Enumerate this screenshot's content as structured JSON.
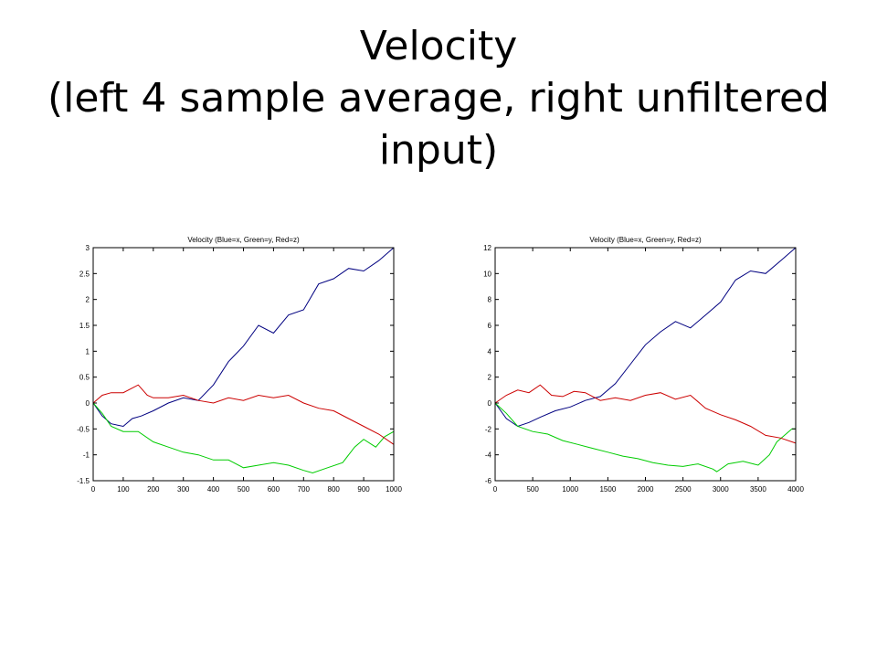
{
  "slide": {
    "title_line1": "Velocity",
    "title_line2": "(left 4 sample average, right unfiltered",
    "title_line3": "input)"
  },
  "chart_data": [
    {
      "type": "line",
      "title": "Velocity (Blue=x, Green=y, Red=z)",
      "xlabel": "",
      "ylabel": "",
      "xlim": [
        0,
        1000
      ],
      "ylim": [
        -1.5,
        3
      ],
      "xticks": [
        0,
        100,
        200,
        300,
        400,
        500,
        600,
        700,
        800,
        900,
        1000
      ],
      "yticks": [
        -1.5,
        -1,
        -0.5,
        0,
        0.5,
        1,
        1.5,
        2,
        2.5,
        3
      ],
      "grid": false,
      "series": [
        {
          "color": "#000080",
          "x": [
            0,
            30,
            60,
            100,
            130,
            160,
            200,
            250,
            300,
            350,
            400,
            450,
            500,
            550,
            600,
            650,
            700,
            750,
            800,
            850,
            900,
            950,
            1000
          ],
          "y": [
            0,
            -0.25,
            -0.4,
            -0.45,
            -0.3,
            -0.25,
            -0.15,
            0.0,
            0.1,
            0.05,
            0.35,
            0.8,
            1.1,
            1.5,
            1.35,
            1.7,
            1.8,
            2.3,
            2.4,
            2.6,
            2.55,
            2.75,
            3.0
          ]
        },
        {
          "color": "#00cc00",
          "x": [
            0,
            30,
            60,
            100,
            150,
            200,
            250,
            300,
            350,
            400,
            450,
            500,
            550,
            600,
            650,
            700,
            730,
            780,
            830,
            870,
            900,
            940,
            970,
            1000
          ],
          "y": [
            0,
            -0.2,
            -0.45,
            -0.55,
            -0.55,
            -0.75,
            -0.85,
            -0.95,
            -1.0,
            -1.1,
            -1.1,
            -1.25,
            -1.2,
            -1.15,
            -1.2,
            -1.3,
            -1.35,
            -1.25,
            -1.15,
            -0.85,
            -0.7,
            -0.85,
            -0.65,
            -0.55
          ]
        },
        {
          "color": "#cc0000",
          "x": [
            0,
            30,
            60,
            100,
            150,
            180,
            200,
            250,
            300,
            350,
            400,
            450,
            500,
            550,
            600,
            650,
            700,
            750,
            800,
            850,
            900,
            950,
            1000
          ],
          "y": [
            0,
            0.15,
            0.2,
            0.2,
            0.35,
            0.15,
            0.1,
            0.1,
            0.15,
            0.05,
            0.0,
            0.1,
            0.05,
            0.15,
            0.1,
            0.15,
            0.0,
            -0.1,
            -0.15,
            -0.3,
            -0.45,
            -0.6,
            -0.8
          ]
        }
      ]
    },
    {
      "type": "line",
      "title": "Velocity (Blue=x, Green=y, Red=z)",
      "xlabel": "",
      "ylabel": "",
      "xlim": [
        0,
        4000
      ],
      "ylim": [
        -6,
        12
      ],
      "xticks": [
        0,
        500,
        1000,
        1500,
        2000,
        2500,
        3000,
        3500,
        4000
      ],
      "yticks": [
        -6,
        -4,
        -2,
        0,
        2,
        4,
        6,
        8,
        10,
        12
      ],
      "grid": false,
      "series": [
        {
          "color": "#000080",
          "x": [
            0,
            150,
            300,
            450,
            600,
            800,
            1000,
            1200,
            1400,
            1600,
            1800,
            2000,
            2200,
            2400,
            2600,
            2800,
            3000,
            3200,
            3400,
            3600,
            3800,
            4000
          ],
          "y": [
            0,
            -1.2,
            -1.8,
            -1.5,
            -1.1,
            -0.6,
            -0.3,
            0.2,
            0.5,
            1.5,
            3.0,
            4.5,
            5.5,
            6.3,
            5.8,
            6.8,
            7.8,
            9.5,
            10.2,
            10.0,
            11.0,
            12.0
          ]
        },
        {
          "color": "#00cc00",
          "x": [
            0,
            150,
            300,
            500,
            700,
            900,
            1100,
            1300,
            1500,
            1700,
            1900,
            2100,
            2300,
            2500,
            2700,
            2900,
            2950,
            3100,
            3300,
            3500,
            3650,
            3750,
            3850,
            3950,
            4000
          ],
          "y": [
            0,
            -0.8,
            -1.8,
            -2.2,
            -2.4,
            -2.9,
            -3.2,
            -3.5,
            -3.8,
            -4.1,
            -4.3,
            -4.6,
            -4.8,
            -4.9,
            -4.7,
            -5.1,
            -5.3,
            -4.7,
            -4.5,
            -4.8,
            -4.0,
            -3.0,
            -2.5,
            -2.0,
            -2.0
          ]
        },
        {
          "color": "#cc0000",
          "x": [
            0,
            150,
            300,
            450,
            600,
            750,
            900,
            1050,
            1200,
            1400,
            1600,
            1800,
            2000,
            2200,
            2400,
            2600,
            2800,
            3000,
            3200,
            3400,
            3600,
            3800,
            4000
          ],
          "y": [
            0,
            0.6,
            1.0,
            0.8,
            1.4,
            0.6,
            0.5,
            0.9,
            0.8,
            0.2,
            0.4,
            0.2,
            0.6,
            0.8,
            0.3,
            0.6,
            -0.4,
            -0.9,
            -1.3,
            -1.8,
            -2.5,
            -2.7,
            -3.1
          ]
        }
      ]
    }
  ]
}
